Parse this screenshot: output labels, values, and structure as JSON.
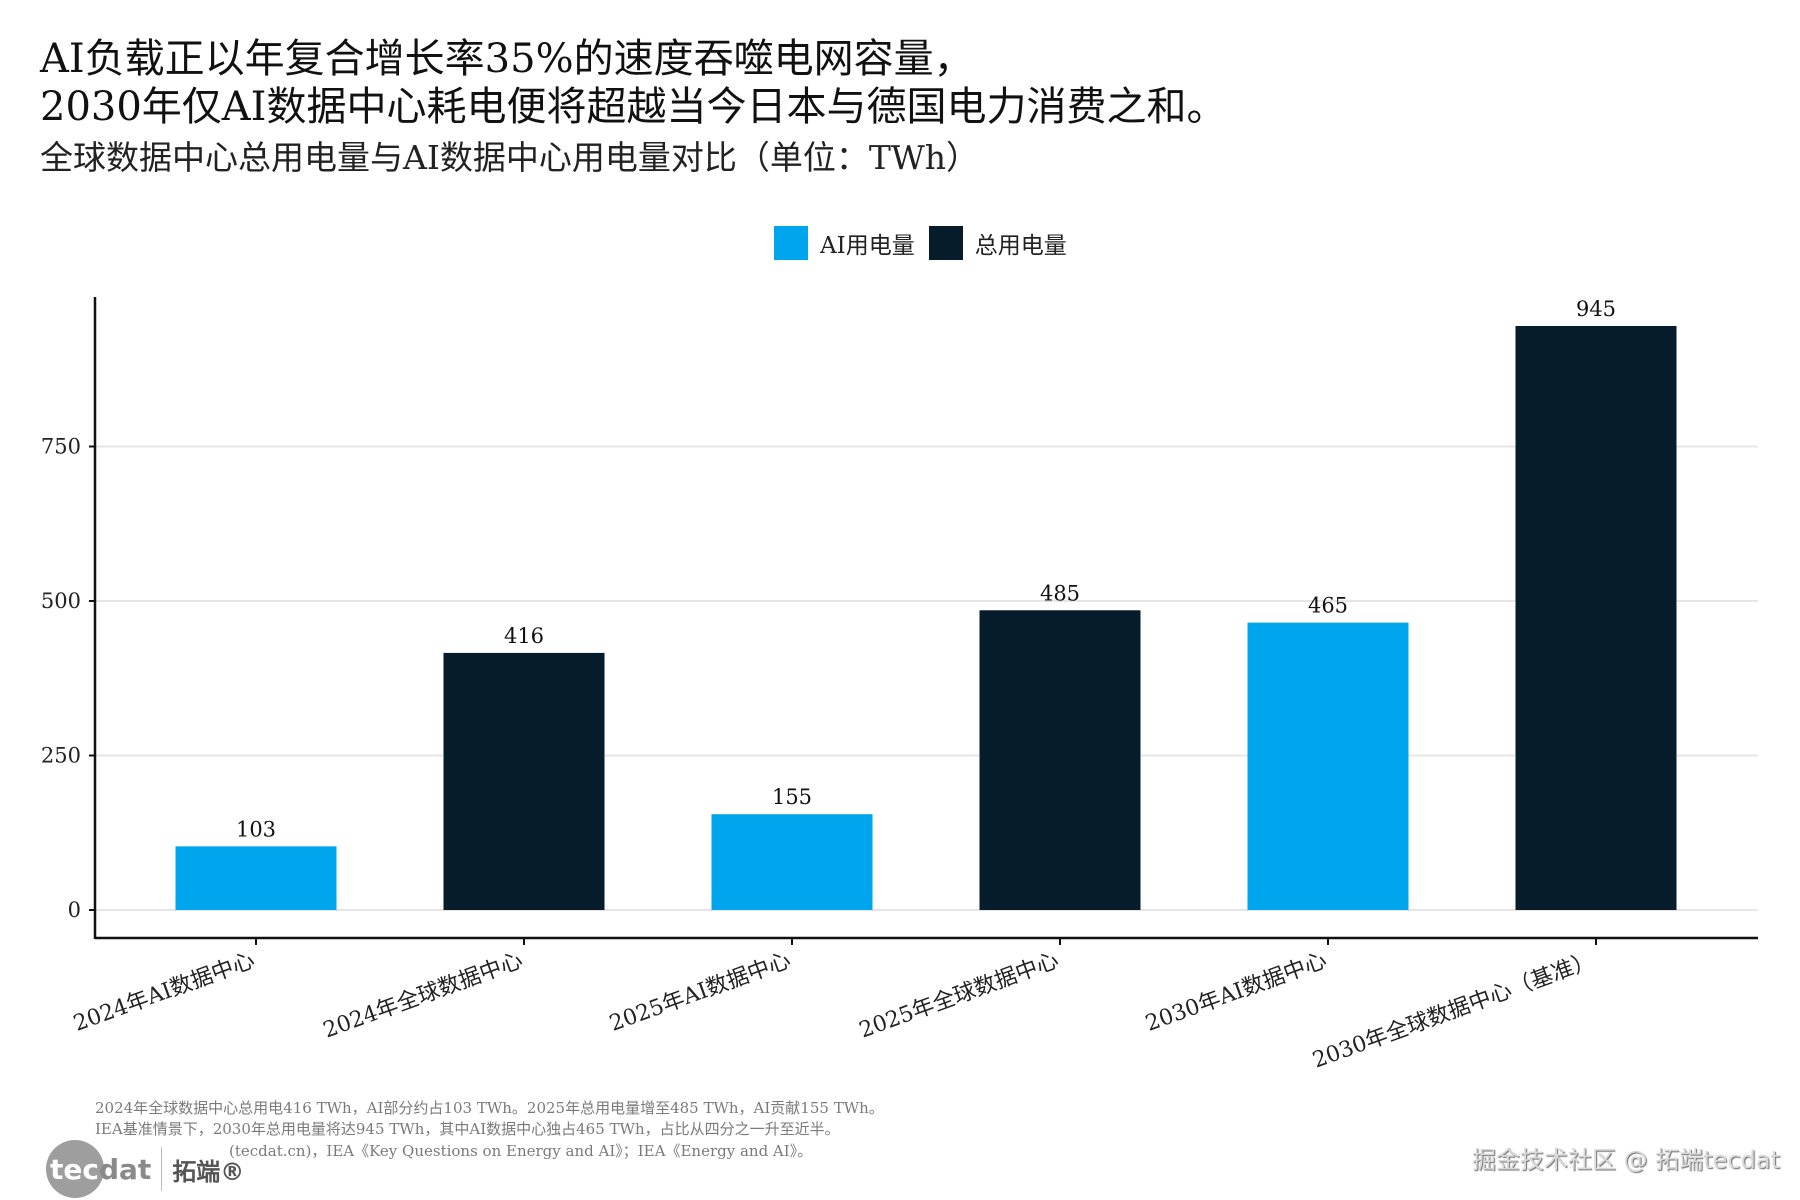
{
  "header": {
    "title_line1": "AI负载正以年复合增长率35%的速度吞噬电网容量，",
    "title_line2": "2030年仅AI数据中心耗电便将超越当今日本与德国电力消费之和。",
    "subtitle": "全球数据中心总用电量与AI数据中心用电量对比（单位：TWh）"
  },
  "legend": {
    "items": [
      {
        "label": "AI用电量",
        "color": "#00A6ED"
      },
      {
        "label": "总用电量",
        "color": "#061C2B"
      }
    ]
  },
  "chart_data": {
    "type": "bar",
    "title": "全球数据中心总用电量与AI数据中心用电量对比（单位：TWh）",
    "xlabel": "",
    "ylabel": "",
    "categories": [
      "2024年AI数据中心",
      "2024年全球数据中心",
      "2025年AI数据中心",
      "2025年全球数据中心",
      "2030年AI数据中心",
      "2030年全球数据中心（基准）"
    ],
    "values": [
      103,
      416,
      155,
      485,
      465,
      945
    ],
    "series_of_bar": [
      "AI用电量",
      "总用电量",
      "AI用电量",
      "总用电量",
      "AI用电量",
      "总用电量"
    ],
    "series": [
      {
        "name": "AI用电量",
        "color": "#00A6ED",
        "values": [
          103,
          null,
          155,
          null,
          465,
          null
        ]
      },
      {
        "name": "总用电量",
        "color": "#061C2B",
        "values": [
          null,
          416,
          null,
          485,
          null,
          945
        ]
      }
    ],
    "data_labels": [
      "103",
      "416",
      "155",
      "485",
      "465",
      "945"
    ],
    "yticks": [
      0,
      250,
      500,
      750
    ],
    "ylim": [
      -45,
      990
    ],
    "grid": "horizontal",
    "legend_position": "top-center"
  },
  "footnotes": {
    "line1": "2024年全球数据中心总用电416 TWh，AI部分约占103 TWh。2025年总用电量增至485 TWh，AI贡献155 TWh。",
    "line2": "IEA基准情景下，2030年总用电量将达945 TWh，其中AI数据中心独占465 TWh，占比从四分之一升至近半。",
    "line3": "(tecdat.cn)，IEA《Key Questions on Energy and AI》；IEA《Energy and AI》。"
  },
  "logo": {
    "tec": "tec",
    "dat": "dat",
    "cn": "拓端®"
  },
  "watermark": "掘金技术社区 @ 拓端tecdat"
}
